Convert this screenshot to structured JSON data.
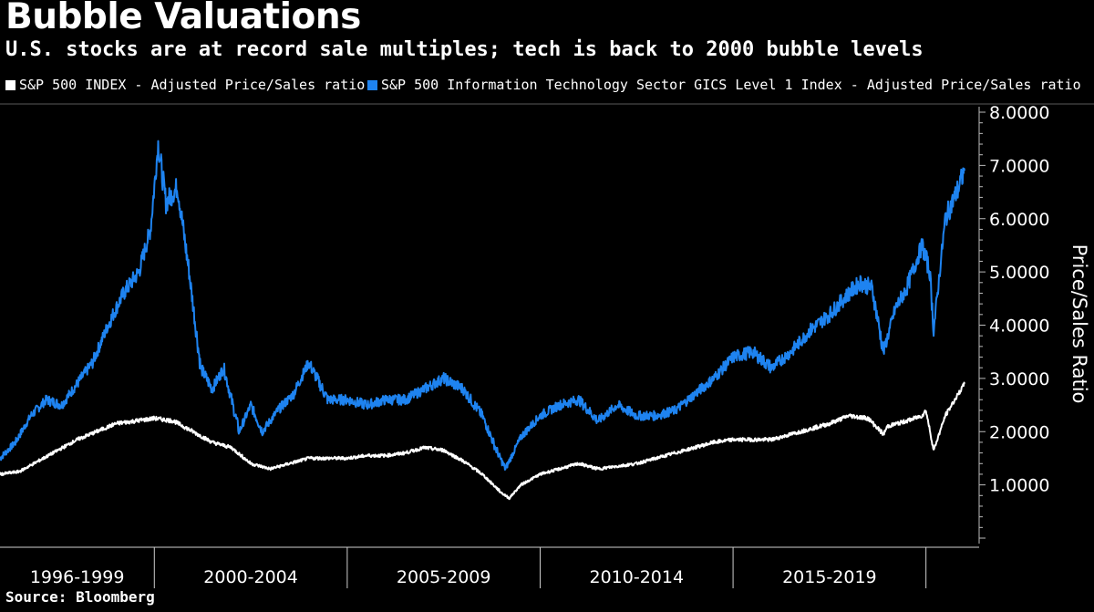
{
  "chart_data": {
    "type": "line",
    "title": "Bubble Valuations",
    "subtitle": "U.S. stocks are at record sale multiples; tech is back to 2000 bubble levels",
    "ylabel": "Price/Sales Ratio",
    "xlabel": "",
    "ylim": [
      0,
      8
    ],
    "yticks": [
      1,
      2,
      3,
      4,
      5,
      6,
      7,
      8
    ],
    "ytick_labels": [
      "1.0000",
      "2.0000",
      "3.0000",
      "4.0000",
      "5.0000",
      "6.0000",
      "7.0000",
      "8.0000"
    ],
    "xlim": [
      1996,
      2021
    ],
    "categories": [
      "1996-1999",
      "2000-2004",
      "2005-2009",
      "2010-2014",
      "2015-2019"
    ],
    "category_starts": [
      1996,
      2000,
      2005,
      2010,
      2015,
      2020
    ],
    "grid": false,
    "legend_position": "top-left",
    "series": [
      {
        "name": "S&P 500 INDEX - Adjusted Price/Sales ratio",
        "color": "#ffffff",
        "x": [
          1996.0,
          1996.5,
          1997.0,
          1997.5,
          1998.0,
          1998.5,
          1999.0,
          1999.5,
          2000.0,
          2000.5,
          2001.0,
          2001.5,
          2002.0,
          2002.5,
          2003.0,
          2003.5,
          2004.0,
          2004.5,
          2005.0,
          2005.5,
          2006.0,
          2006.5,
          2007.0,
          2007.5,
          2008.0,
          2008.5,
          2009.0,
          2009.2,
          2009.5,
          2010.0,
          2010.5,
          2011.0,
          2011.5,
          2012.0,
          2012.5,
          2013.0,
          2013.5,
          2014.0,
          2014.5,
          2015.0,
          2015.5,
          2016.0,
          2016.5,
          2017.0,
          2017.5,
          2018.0,
          2018.5,
          2018.9,
          2019.0,
          2019.5,
          2019.9,
          2020.0,
          2020.2,
          2020.5,
          2021.0
        ],
        "values": [
          1.2,
          1.25,
          1.45,
          1.65,
          1.85,
          2.0,
          2.15,
          2.2,
          2.25,
          2.2,
          2.0,
          1.8,
          1.7,
          1.4,
          1.3,
          1.4,
          1.5,
          1.5,
          1.5,
          1.55,
          1.55,
          1.6,
          1.7,
          1.65,
          1.45,
          1.2,
          0.85,
          0.75,
          1.0,
          1.2,
          1.3,
          1.4,
          1.3,
          1.35,
          1.4,
          1.5,
          1.6,
          1.7,
          1.8,
          1.85,
          1.85,
          1.85,
          1.95,
          2.05,
          2.15,
          2.3,
          2.25,
          1.95,
          2.1,
          2.2,
          2.3,
          2.4,
          1.65,
          2.3,
          2.9
        ]
      },
      {
        "name": "S&P 500 Information Technology Sector GICS Level 1 Index - Adjusted Price/Sales ratio",
        "color": "#1e83f0",
        "x": [
          1996.0,
          1996.4,
          1996.8,
          1997.2,
          1997.6,
          1998.0,
          1998.4,
          1998.8,
          1999.2,
          1999.6,
          1999.9,
          2000.1,
          2000.3,
          2000.6,
          2000.9,
          2001.2,
          2001.5,
          2001.8,
          2002.2,
          2002.5,
          2002.8,
          2003.2,
          2003.6,
          2004.0,
          2004.5,
          2005.0,
          2005.5,
          2006.0,
          2006.5,
          2007.0,
          2007.5,
          2008.0,
          2008.5,
          2008.9,
          2009.1,
          2009.5,
          2010.0,
          2010.5,
          2011.0,
          2011.5,
          2012.0,
          2012.5,
          2013.0,
          2013.5,
          2014.0,
          2014.5,
          2015.0,
          2015.5,
          2016.0,
          2016.5,
          2017.0,
          2017.5,
          2018.0,
          2018.3,
          2018.6,
          2018.9,
          2019.2,
          2019.5,
          2019.9,
          2020.1,
          2020.2,
          2020.5,
          2020.8,
          2021.0
        ],
        "values": [
          1.5,
          1.8,
          2.3,
          2.6,
          2.5,
          2.9,
          3.3,
          4.0,
          4.6,
          5.0,
          5.8,
          7.4,
          6.3,
          6.6,
          5.0,
          3.2,
          2.8,
          3.2,
          2.0,
          2.5,
          2.0,
          2.4,
          2.7,
          3.3,
          2.6,
          2.6,
          2.5,
          2.6,
          2.6,
          2.8,
          3.0,
          2.8,
          2.3,
          1.6,
          1.3,
          1.9,
          2.3,
          2.5,
          2.6,
          2.2,
          2.5,
          2.3,
          2.3,
          2.4,
          2.7,
          3.0,
          3.4,
          3.5,
          3.2,
          3.5,
          3.9,
          4.2,
          4.6,
          4.8,
          4.7,
          3.5,
          4.3,
          4.7,
          5.5,
          5.0,
          3.9,
          6.0,
          6.5,
          6.9
        ]
      }
    ],
    "source": "Source: Bloomberg"
  }
}
